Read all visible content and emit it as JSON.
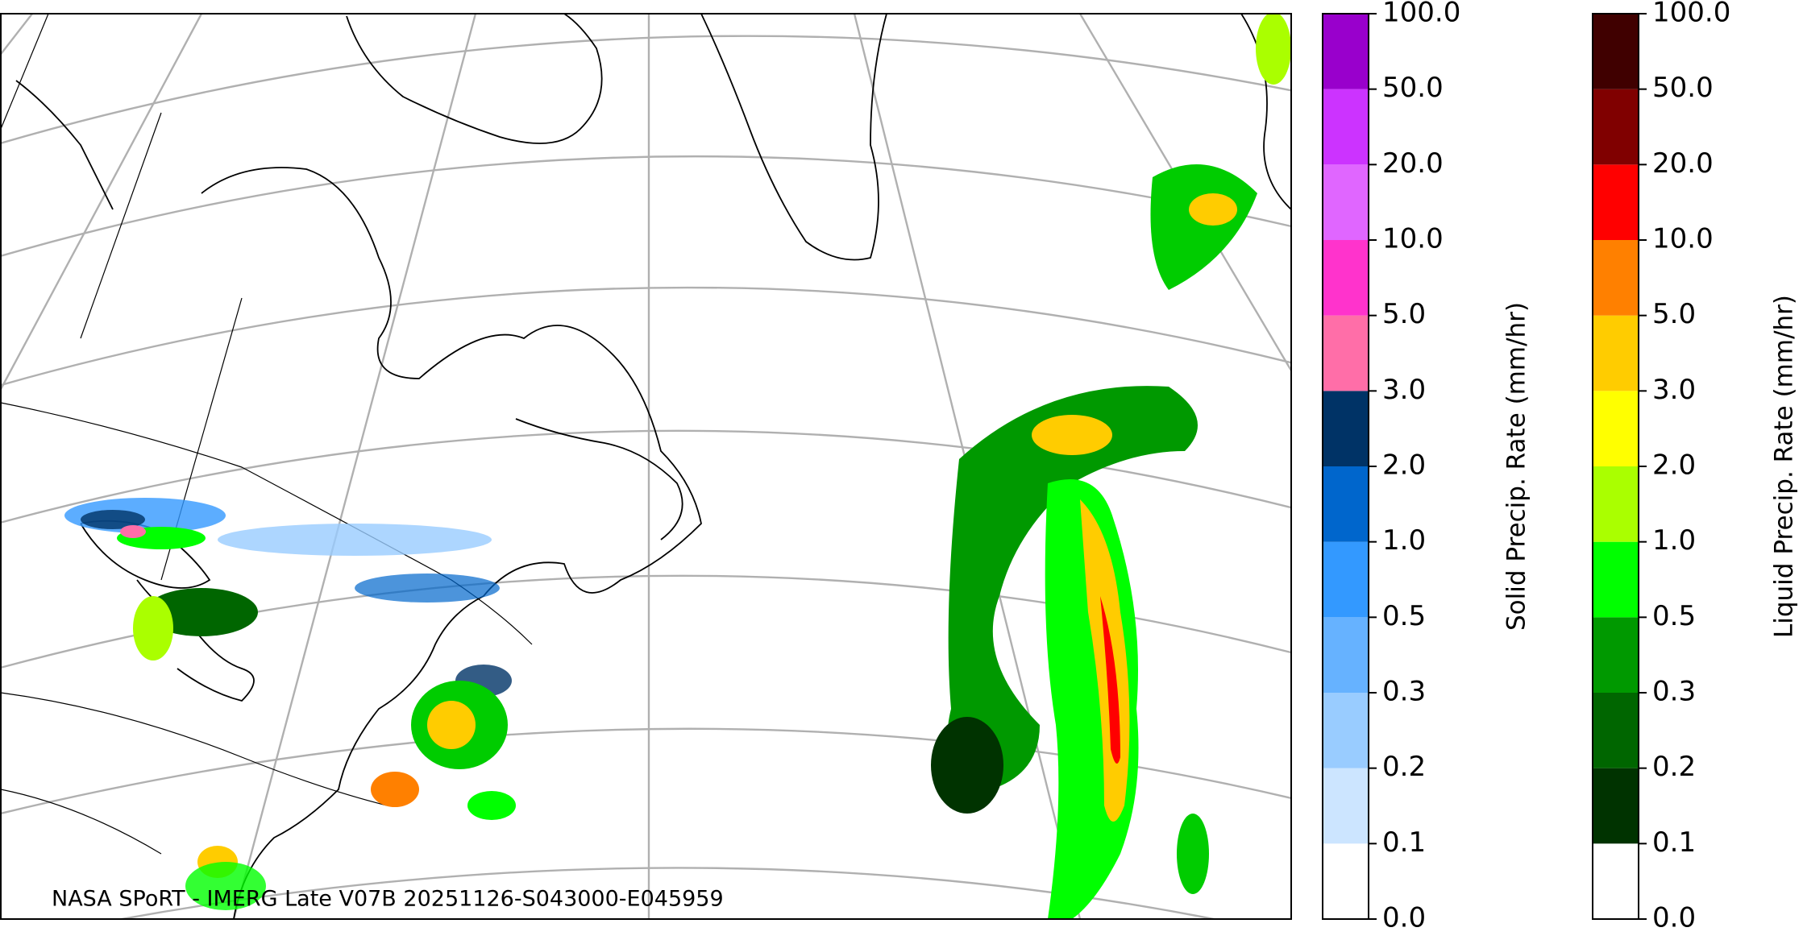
{
  "caption": "NASA SPoRT - IMERG Late V07B 20251126-S043000-E045959",
  "colorbars": [
    {
      "label": "Solid Precip. Rate (mm/hr)",
      "ticks": [
        {
          "value": 0,
          "label": "0.0"
        },
        {
          "value": 0.1,
          "label": "0.1"
        },
        {
          "value": 0.2,
          "label": "0.2"
        },
        {
          "value": 0.3,
          "label": "0.3"
        },
        {
          "value": 0.5,
          "label": "0.5"
        },
        {
          "value": 1,
          "label": "1.0"
        },
        {
          "value": 2,
          "label": "2.0"
        },
        {
          "value": 3,
          "label": "3.0"
        },
        {
          "value": 5,
          "label": "5.0"
        },
        {
          "value": 10,
          "label": "10.0"
        },
        {
          "value": 20,
          "label": "20.0"
        },
        {
          "value": 50,
          "label": "50.0"
        },
        {
          "value": 100,
          "label": "100.0"
        }
      ],
      "colors": [
        "#ffffff",
        "#cce5ff",
        "#99ccff",
        "#66b2ff",
        "#3399ff",
        "#0066cc",
        "#003366",
        "#ff6ea8",
        "#ff33cc",
        "#e066ff",
        "#cc33ff",
        "#9900cc"
      ]
    },
    {
      "label": "Liquid Precip. Rate (mm/hr)",
      "ticks": [
        {
          "value": 0,
          "label": "0.0"
        },
        {
          "value": 0.1,
          "label": "0.1"
        },
        {
          "value": 0.2,
          "label": "0.2"
        },
        {
          "value": 0.3,
          "label": "0.3"
        },
        {
          "value": 0.5,
          "label": "0.5"
        },
        {
          "value": 1,
          "label": "1.0"
        },
        {
          "value": 2,
          "label": "2.0"
        },
        {
          "value": 3,
          "label": "3.0"
        },
        {
          "value": 5,
          "label": "5.0"
        },
        {
          "value": 10,
          "label": "10.0"
        },
        {
          "value": 20,
          "label": "20.0"
        },
        {
          "value": 50,
          "label": "50.0"
        },
        {
          "value": 100,
          "label": "100.0"
        }
      ],
      "colors": [
        "#ffffff",
        "#003300",
        "#006600",
        "#009900",
        "#00ff00",
        "#aaff00",
        "#ffff00",
        "#ffcc00",
        "#ff8000",
        "#ff0000",
        "#800000",
        "#400000"
      ]
    }
  ]
}
